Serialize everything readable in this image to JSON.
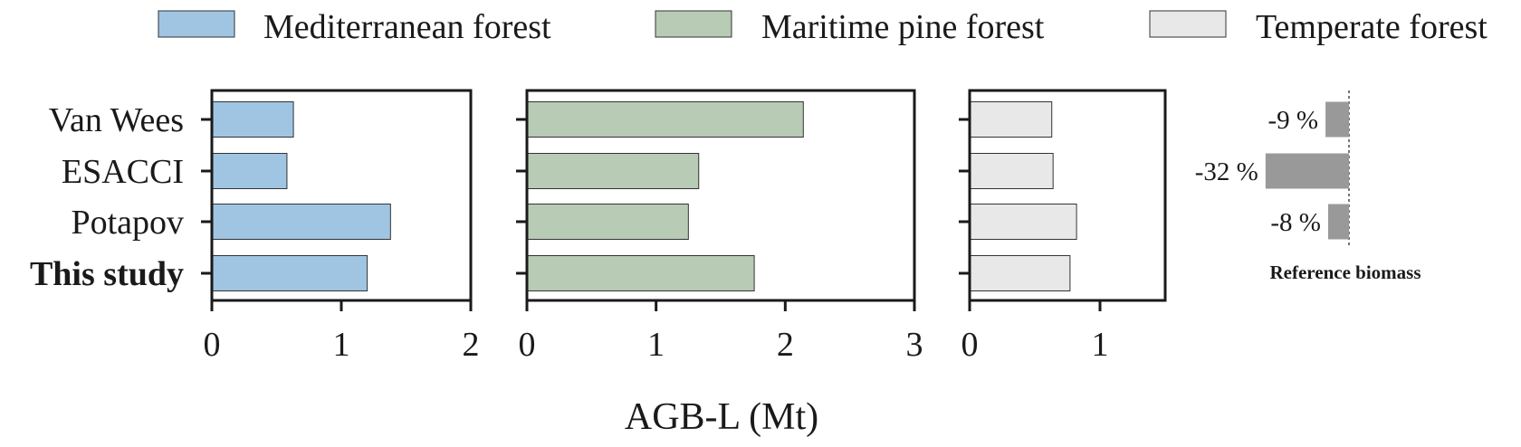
{
  "colors": {
    "mediterranean": "#9fc5e3",
    "maritime": "#b7cbb5",
    "temperate": "#e8e8e8",
    "reference": "#999999",
    "frame": "#1a1a1a"
  },
  "legend": [
    {
      "label": "Mediterranean forest",
      "color_key": "mediterranean"
    },
    {
      "label": "Maritime pine forest",
      "color_key": "maritime"
    },
    {
      "label": "Temperate forest",
      "color_key": "temperate"
    }
  ],
  "x_axis_label": "AGB-L (Mt)",
  "reference": {
    "title": "Reference biomass",
    "labels": [
      "-9 %",
      "-32 %",
      "-8 %"
    ]
  },
  "chart_data": {
    "type": "bar",
    "orientation": "horizontal",
    "categories": [
      "Van Wees",
      "ESACCI",
      "Potapov",
      "This study"
    ],
    "bold_categories": [
      "This study"
    ],
    "xlabel": "AGB-L (Mt)",
    "ylabel": "",
    "panels": [
      {
        "name": "Mediterranean forest",
        "xlim": [
          0,
          2
        ],
        "ticks": [
          "0",
          "1",
          "2"
        ],
        "values": [
          0.63,
          0.58,
          1.38,
          1.2
        ]
      },
      {
        "name": "Maritime pine forest",
        "xlim": [
          0,
          3
        ],
        "ticks": [
          "0",
          "1",
          "2",
          "3"
        ],
        "values": [
          2.14,
          1.33,
          1.25,
          1.76
        ]
      },
      {
        "name": "Temperate forest",
        "xlim": [
          0,
          1.5
        ],
        "ticks": [
          "0",
          "1"
        ],
        "values": [
          0.63,
          0.64,
          0.82,
          0.77
        ]
      }
    ],
    "reference_panel": {
      "title": "Reference biomass",
      "categories": [
        "Van Wees",
        "ESACCI",
        "Potapov"
      ],
      "values": [
        -9,
        -32,
        -8
      ],
      "unit": "%"
    },
    "legend_position": "top",
    "grid": false
  }
}
